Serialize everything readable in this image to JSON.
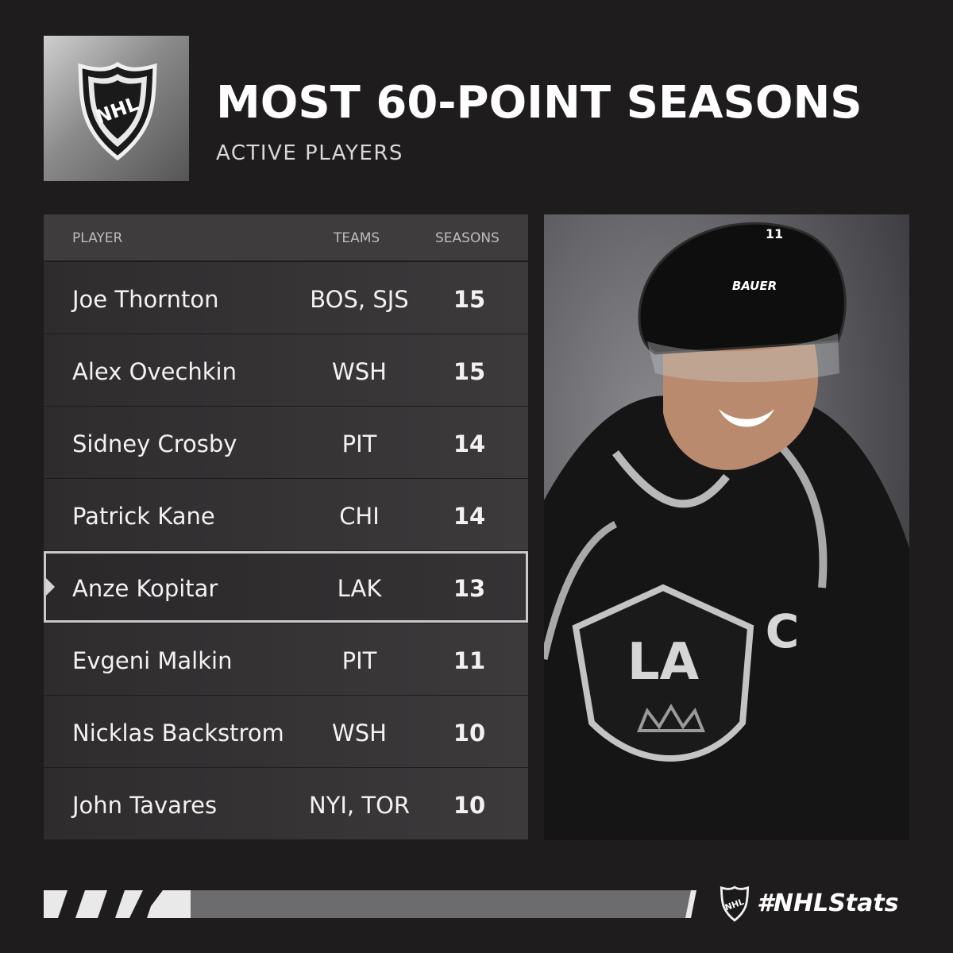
{
  "header": {
    "title": "MOST 60-POINT SEASONS",
    "subtitle": "ACTIVE PLAYERS",
    "logo_text": "NHL"
  },
  "table": {
    "columns": [
      "PLAYER",
      "TEAMS",
      "SEASONS"
    ],
    "rows": [
      {
        "player": "Joe Thornton",
        "teams": "BOS, SJS",
        "seasons": "15"
      },
      {
        "player": "Alex Ovechkin",
        "teams": "WSH",
        "seasons": "15"
      },
      {
        "player": "Sidney Crosby",
        "teams": "PIT",
        "seasons": "14"
      },
      {
        "player": "Patrick Kane",
        "teams": "CHI",
        "seasons": "14"
      },
      {
        "player": "Anze Kopitar",
        "teams": "LAK",
        "seasons": "13"
      },
      {
        "player": "Evgeni Malkin",
        "teams": "PIT",
        "seasons": "11"
      },
      {
        "player": "Nicklas Backstrom",
        "teams": "WSH",
        "seasons": "10"
      },
      {
        "player": "John Tavares",
        "teams": "NYI, TOR",
        "seasons": "10"
      }
    ],
    "highlighted_player": "Anze Kopitar"
  },
  "photo": {
    "helmet_brand": "BAUER",
    "jersey_number": "11",
    "crest_text": "LA",
    "captain_letter": "C"
  },
  "footer": {
    "hashtag": "#NHLStats",
    "logo_text": "NHL"
  },
  "colors": {
    "background": "#1f1c1d",
    "row": "#353334",
    "header_row": "#3e3c3d",
    "highlight_outline": "#c9c9c9"
  }
}
